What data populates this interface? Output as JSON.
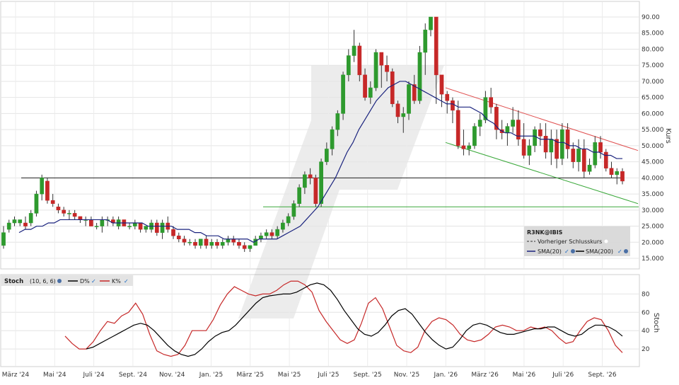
{
  "chart_data": [
    {
      "type": "candlestick",
      "ylabel": "Kurs",
      "ylim": [
        10,
        93
      ],
      "yticks": [
        "90.00",
        "85.000",
        "80.000",
        "75.000",
        "70.000",
        "65.000",
        "60.000",
        "55.000",
        "50.000",
        "45.000",
        "40.000",
        "35.000",
        "30.000",
        "25.000",
        "20.000",
        "15.000"
      ],
      "ytick_values": [
        90,
        85,
        80,
        75,
        70,
        65,
        60,
        55,
        50,
        45,
        40,
        35,
        30,
        25,
        20,
        15
      ],
      "x_tick_labels": [
        "März '24",
        "Mai '24",
        "Juli '24",
        "Sept. '24",
        "Nov. '24",
        "Jan. '25",
        "März '25",
        "Mai '25",
        "Juli '25",
        "Sept. '25",
        "Nov. '25",
        "Jan. '26",
        "März '26",
        "Mai '26",
        "Juli '26",
        "Sept. '26"
      ],
      "grid": true,
      "ohlc_weekly": [
        [
          19,
          25,
          18,
          23
        ],
        [
          24,
          27,
          23,
          26
        ],
        [
          26,
          28,
          25,
          27
        ],
        [
          26,
          27,
          25,
          27
        ],
        [
          26,
          28,
          24,
          25
        ],
        [
          26,
          30,
          25,
          29
        ],
        [
          29,
          36,
          28,
          35
        ],
        [
          35,
          41,
          33,
          40
        ],
        [
          39,
          40,
          32,
          33
        ],
        [
          33,
          35,
          31,
          32
        ],
        [
          31,
          32,
          29,
          30
        ],
        [
          30,
          31,
          28,
          29
        ],
        [
          29,
          30,
          27,
          29
        ],
        [
          29,
          30,
          27,
          28
        ],
        [
          28,
          28,
          26,
          27
        ],
        [
          27,
          28,
          25,
          27
        ],
        [
          27,
          28,
          25,
          25
        ],
        [
          25,
          26,
          24,
          25
        ],
        [
          25,
          28,
          23,
          27
        ],
        [
          27,
          28,
          25,
          27
        ],
        [
          27,
          28,
          25,
          26
        ],
        [
          25,
          28,
          24,
          27
        ],
        [
          27,
          27,
          25,
          25
        ],
        [
          25,
          26,
          24,
          25
        ],
        [
          25,
          27,
          24,
          26
        ],
        [
          26,
          26,
          23,
          24
        ],
        [
          24,
          25,
          23,
          25
        ],
        [
          24,
          27,
          23,
          26
        ],
        [
          26,
          27,
          22,
          23
        ],
        [
          23,
          27,
          21,
          26
        ],
        [
          26,
          28,
          23,
          24
        ],
        [
          24,
          25,
          21,
          22
        ],
        [
          22,
          23,
          20,
          21
        ],
        [
          21,
          22,
          19,
          20
        ],
        [
          20,
          21,
          19,
          20
        ],
        [
          20,
          21,
          18,
          19
        ],
        [
          19,
          21,
          18,
          21
        ],
        [
          21,
          22,
          18,
          19
        ],
        [
          19,
          21,
          18,
          20
        ],
        [
          20,
          21,
          18,
          19
        ],
        [
          19,
          21,
          18,
          20
        ],
        [
          20,
          22,
          19,
          21
        ],
        [
          21,
          22,
          19,
          20
        ],
        [
          20,
          21,
          18,
          19
        ],
        [
          19,
          20,
          17,
          18
        ],
        [
          18,
          19,
          17,
          19
        ],
        [
          19,
          22,
          19,
          21
        ],
        [
          21,
          23,
          20,
          22
        ],
        [
          22,
          24,
          21,
          23
        ],
        [
          23,
          24,
          21,
          22
        ],
        [
          22,
          25,
          21,
          24
        ],
        [
          24,
          27,
          23,
          26
        ],
        [
          26,
          29,
          25,
          28
        ],
        [
          28,
          33,
          27,
          32
        ],
        [
          32,
          38,
          31,
          37
        ],
        [
          37,
          42,
          35,
          41
        ],
        [
          41,
          43,
          38,
          40
        ],
        [
          40,
          41,
          31,
          32
        ],
        [
          32,
          46,
          31,
          45
        ],
        [
          45,
          51,
          44,
          49
        ],
        [
          49,
          56,
          47,
          55
        ],
        [
          55,
          61,
          53,
          60
        ],
        [
          60,
          73,
          58,
          72
        ],
        [
          72,
          80,
          70,
          78
        ],
        [
          78,
          86,
          76,
          81
        ],
        [
          81,
          82,
          70,
          72
        ],
        [
          72,
          74,
          64,
          65
        ],
        [
          65,
          70,
          63,
          68
        ],
        [
          68,
          80,
          67,
          79
        ],
        [
          79,
          76,
          68,
          75
        ],
        [
          75,
          78,
          70,
          73
        ],
        [
          73,
          74,
          62,
          63
        ],
        [
          63,
          64,
          57,
          59
        ],
        [
          59,
          62,
          54,
          60
        ],
        [
          60,
          70,
          58,
          69
        ],
        [
          69,
          72,
          63,
          64
        ],
        [
          64,
          81,
          63,
          79
        ],
        [
          79,
          88,
          72,
          86
        ],
        [
          86,
          90,
          84,
          90
        ],
        [
          90,
          90,
          63,
          72
        ],
        [
          72,
          68,
          62,
          66
        ],
        [
          66,
          67,
          60,
          64
        ],
        [
          64,
          65,
          57,
          61
        ],
        [
          61,
          64,
          49,
          50
        ],
        [
          50,
          55,
          47,
          49
        ],
        [
          49,
          51,
          47,
          50
        ],
        [
          50,
          57,
          49,
          56
        ],
        [
          56,
          60,
          53,
          58
        ],
        [
          58,
          67,
          57,
          65
        ],
        [
          65,
          68,
          60,
          62
        ],
        [
          62,
          63,
          52,
          55
        ],
        [
          55,
          58,
          52,
          54
        ],
        [
          54,
          57,
          50,
          56
        ],
        [
          56,
          62,
          54,
          58
        ],
        [
          58,
          61,
          50,
          52
        ],
        [
          52,
          57,
          46,
          47
        ],
        [
          47,
          52,
          44,
          50
        ],
        [
          50,
          56,
          48,
          55
        ],
        [
          55,
          57,
          50,
          53
        ],
        [
          53,
          57,
          46,
          48
        ],
        [
          48,
          55,
          44,
          52
        ],
        [
          52,
          55,
          43,
          46
        ],
        [
          46,
          57,
          44,
          55
        ],
        [
          55,
          57,
          46,
          49
        ],
        [
          49,
          51,
          43,
          45
        ],
        [
          45,
          52,
          42,
          49
        ],
        [
          49,
          52,
          40,
          42
        ],
        [
          42,
          46,
          41,
          44
        ],
        [
          44,
          53,
          43,
          51
        ],
        [
          51,
          53,
          46,
          48
        ],
        [
          48,
          49,
          42,
          43
        ],
        [
          43,
          45,
          40,
          41
        ],
        [
          41,
          43,
          38,
          42
        ],
        [
          42,
          43,
          38,
          39
        ]
      ],
      "series": [
        {
          "name": "SMA(20)",
          "color": "#1a237e",
          "values": [
            23,
            24,
            24,
            25,
            25,
            26,
            26,
            27,
            27,
            27,
            27,
            27,
            27,
            27,
            27,
            27,
            26,
            26,
            26,
            26,
            26,
            26,
            25,
            25,
            25,
            25,
            25,
            24,
            24,
            24,
            23,
            23,
            22,
            22,
            22,
            21,
            21,
            21,
            21,
            21,
            20,
            21,
            21,
            21,
            21,
            22,
            23,
            24,
            25,
            27,
            29,
            31,
            34,
            37,
            40,
            44,
            48,
            51,
            55,
            58,
            61,
            64,
            66,
            68,
            69,
            70,
            70,
            69,
            68,
            67,
            66,
            65,
            64,
            63,
            63,
            62,
            62,
            62,
            61,
            60,
            58,
            57,
            55,
            54,
            54,
            53,
            53,
            53,
            53,
            52,
            52,
            52,
            51,
            51,
            50,
            50,
            49,
            49,
            48,
            48,
            47,
            47,
            46,
            46
          ]
        },
        {
          "name": "SMA(200)",
          "color": "#000000",
          "values": []
        },
        {
          "name": "Vorheriger Schlusskurs",
          "color": "#000000",
          "dashed": true,
          "values": [
            40
          ]
        }
      ],
      "annotations": [
        "upper red trend line",
        "lower green trend line",
        "horizontal support line at 31",
        "horizontal line at 40"
      ],
      "legend": {
        "symbol": "R3NK@IBIS",
        "placement": "bottom-right"
      }
    },
    {
      "type": "line",
      "title": "Stoch",
      "params": "(10, 6, 6)",
      "ylabel": "Stoch",
      "ylim": [
        0,
        100
      ],
      "yticks": [
        "80",
        "60",
        "40",
        "20"
      ],
      "ytick_values": [
        80,
        60,
        40,
        20
      ],
      "x_tick_labels": [
        "März '24",
        "Mai '24",
        "Juli '24",
        "Sept. '24",
        "Nov. '24",
        "Jan. '25",
        "März '25",
        "Mai '25",
        "Juli '25",
        "Sept. '25",
        "Nov. '25",
        "Jan. '26",
        "März '26",
        "Mai '26",
        "Juli '26",
        "Sept. '26"
      ],
      "series": [
        {
          "name": "D%",
          "color": "#000000",
          "values": [
            20,
            22,
            26,
            30,
            34,
            38,
            42,
            46,
            48,
            46,
            40,
            32,
            24,
            18,
            14,
            12,
            14,
            20,
            28,
            34,
            38,
            40,
            46,
            54,
            62,
            70,
            76,
            78,
            79,
            80,
            80,
            82,
            86,
            90,
            92,
            90,
            84,
            74,
            62,
            52,
            42,
            36,
            34,
            38,
            46,
            56,
            62,
            64,
            58,
            48,
            38,
            30,
            24,
            20,
            22,
            30,
            40,
            46,
            48,
            46,
            42,
            38,
            36,
            36,
            38,
            40,
            42,
            42,
            44,
            44,
            40,
            36,
            34,
            36,
            42,
            46,
            46,
            44,
            40,
            34
          ]
        },
        {
          "name": "K%",
          "color": "#c62828",
          "values": [
            34,
            26,
            20,
            20,
            28,
            40,
            50,
            48,
            56,
            60,
            70,
            58,
            36,
            18,
            14,
            12,
            14,
            24,
            40,
            40,
            40,
            52,
            68,
            80,
            88,
            84,
            80,
            78,
            80,
            80,
            84,
            90,
            94,
            94,
            90,
            82,
            62,
            50,
            40,
            30,
            26,
            30,
            48,
            70,
            76,
            64,
            44,
            24,
            18,
            16,
            22,
            40,
            50,
            54,
            52,
            46,
            36,
            30,
            28,
            30,
            36,
            44,
            46,
            44,
            40,
            40,
            44,
            42,
            44,
            40,
            32,
            26,
            28,
            40,
            50,
            54,
            52,
            40,
            24,
            16
          ]
        }
      ]
    }
  ],
  "legend": {
    "symbol": "R3NK@IBIS",
    "prev_close_label": "Vorheriger Schlusskurs",
    "sma20_label": "SMA(20)",
    "sma200_label": "SMA(200)"
  },
  "stoch_legend": {
    "title": "Stoch",
    "params": "(10, 6, 6)",
    "d_label": "D%",
    "k_label": "K%"
  },
  "colors": {
    "up": "#2e9a2e",
    "down": "#c62828",
    "sma20": "#1a237e",
    "stoch_d": "#000000",
    "stoch_k": "#c62828",
    "resistance": "#e05050",
    "support": "#3aa83a"
  }
}
